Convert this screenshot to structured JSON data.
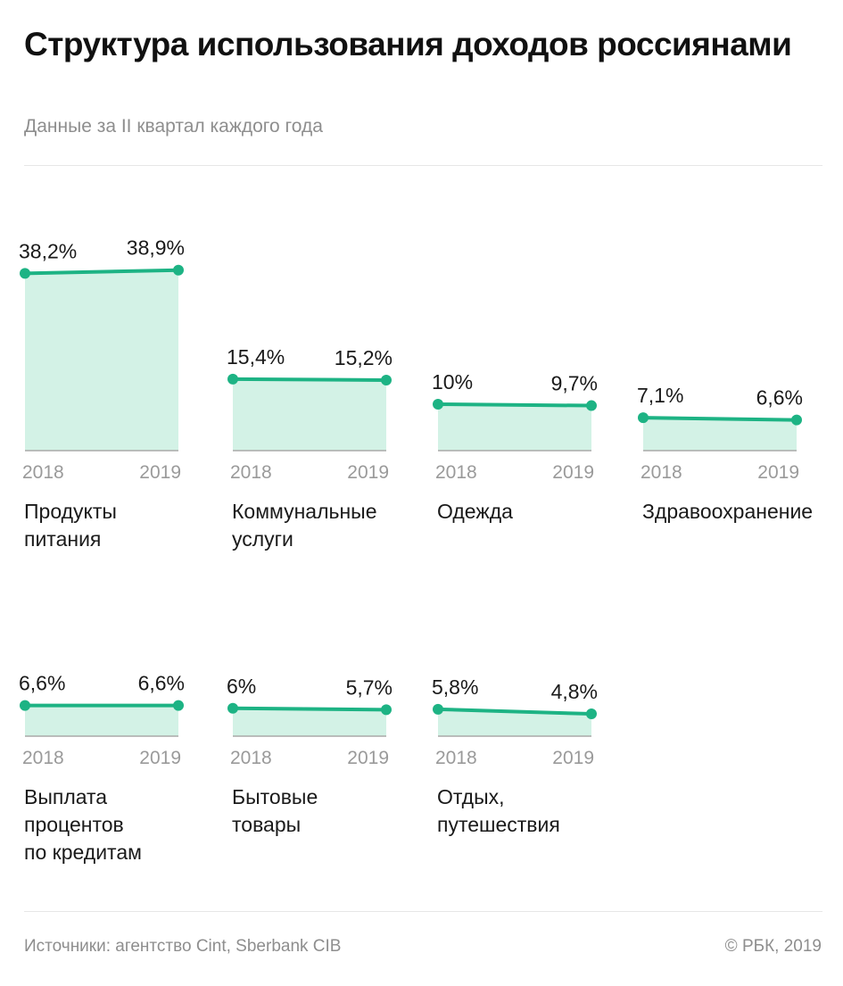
{
  "title": "Структура использования доходов россиянами",
  "subtitle": "Данные за II квартал каждого года",
  "footer": {
    "source": "Источники: агентство Cint, Sberbank CIB",
    "copyright": "© РБК, 2019"
  },
  "colors": {
    "line": "#1db384",
    "area": "#d3f2e6",
    "baseline": "#a9a9a9"
  },
  "chart_data": {
    "type": "area",
    "x": [
      "2018",
      "2019"
    ],
    "unit": "%",
    "series": [
      {
        "name": "Продукты питания",
        "label_lines": [
          "Продукты",
          "питания"
        ],
        "values": [
          38.2,
          38.9
        ],
        "value_labels": [
          "38,2%",
          "38,9%"
        ]
      },
      {
        "name": "Коммунальные услуги",
        "label_lines": [
          "Коммунальные",
          "услуги"
        ],
        "values": [
          15.4,
          15.2
        ],
        "value_labels": [
          "15,4%",
          "15,2%"
        ]
      },
      {
        "name": "Одежда",
        "label_lines": [
          "Одежда"
        ],
        "values": [
          10,
          9.7
        ],
        "value_labels": [
          "10%",
          "9,7%"
        ]
      },
      {
        "name": "Здравоохранение",
        "label_lines": [
          "Здравоохранение"
        ],
        "values": [
          7.1,
          6.6
        ],
        "value_labels": [
          "7,1%",
          "6,6%"
        ]
      },
      {
        "name": "Выплата процентов по кредитам",
        "label_lines": [
          "Выплата",
          "процентов",
          "по кредитам"
        ],
        "values": [
          6.6,
          6.6
        ],
        "value_labels": [
          "6,6%",
          "6,6%"
        ]
      },
      {
        "name": "Бытовые товары",
        "label_lines": [
          "Бытовые",
          "товары"
        ],
        "values": [
          6,
          5.7
        ],
        "value_labels": [
          "6%",
          "5,7%"
        ]
      },
      {
        "name": "Отдых, путешествия",
        "label_lines": [
          "Отдых,",
          "путешествия"
        ],
        "values": [
          5.8,
          4.8
        ],
        "value_labels": [
          "5,8%",
          "4,8%"
        ]
      }
    ]
  }
}
